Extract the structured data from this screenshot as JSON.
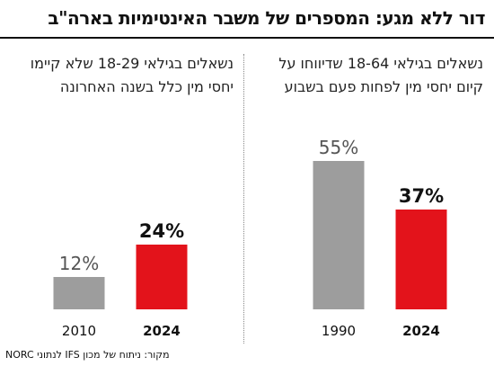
{
  "title": "דור ללא מגע: המספרים של משבר האינטימיות בארה\"ב",
  "source": "מקור: ניתוח של מכון IFS לנתוני NORC",
  "colors": {
    "past": "#9d9d9d",
    "recent": "#e3131b"
  },
  "chart_data": [
    {
      "type": "bar",
      "title": "נשאלים בגילאי 18-64 שדיווחו על קיום יחסי מין לפחות פעם בשבוע",
      "categories": [
        "1990",
        "2024"
      ],
      "values": [
        55,
        37
      ],
      "value_labels": [
        "55%",
        "37%"
      ],
      "unit": "%",
      "ylim": [
        0,
        60
      ],
      "grid": false,
      "legend": "none"
    },
    {
      "type": "bar",
      "title": "נשאלים בגילאי 18-29 שלא קיימו יחסי מין כלל בשנה האחרונה",
      "categories": [
        "2010",
        "2024"
      ],
      "values": [
        12,
        24
      ],
      "value_labels": [
        "12%",
        "24%"
      ],
      "unit": "%",
      "ylim": [
        0,
        60
      ],
      "grid": false,
      "legend": "none"
    }
  ]
}
